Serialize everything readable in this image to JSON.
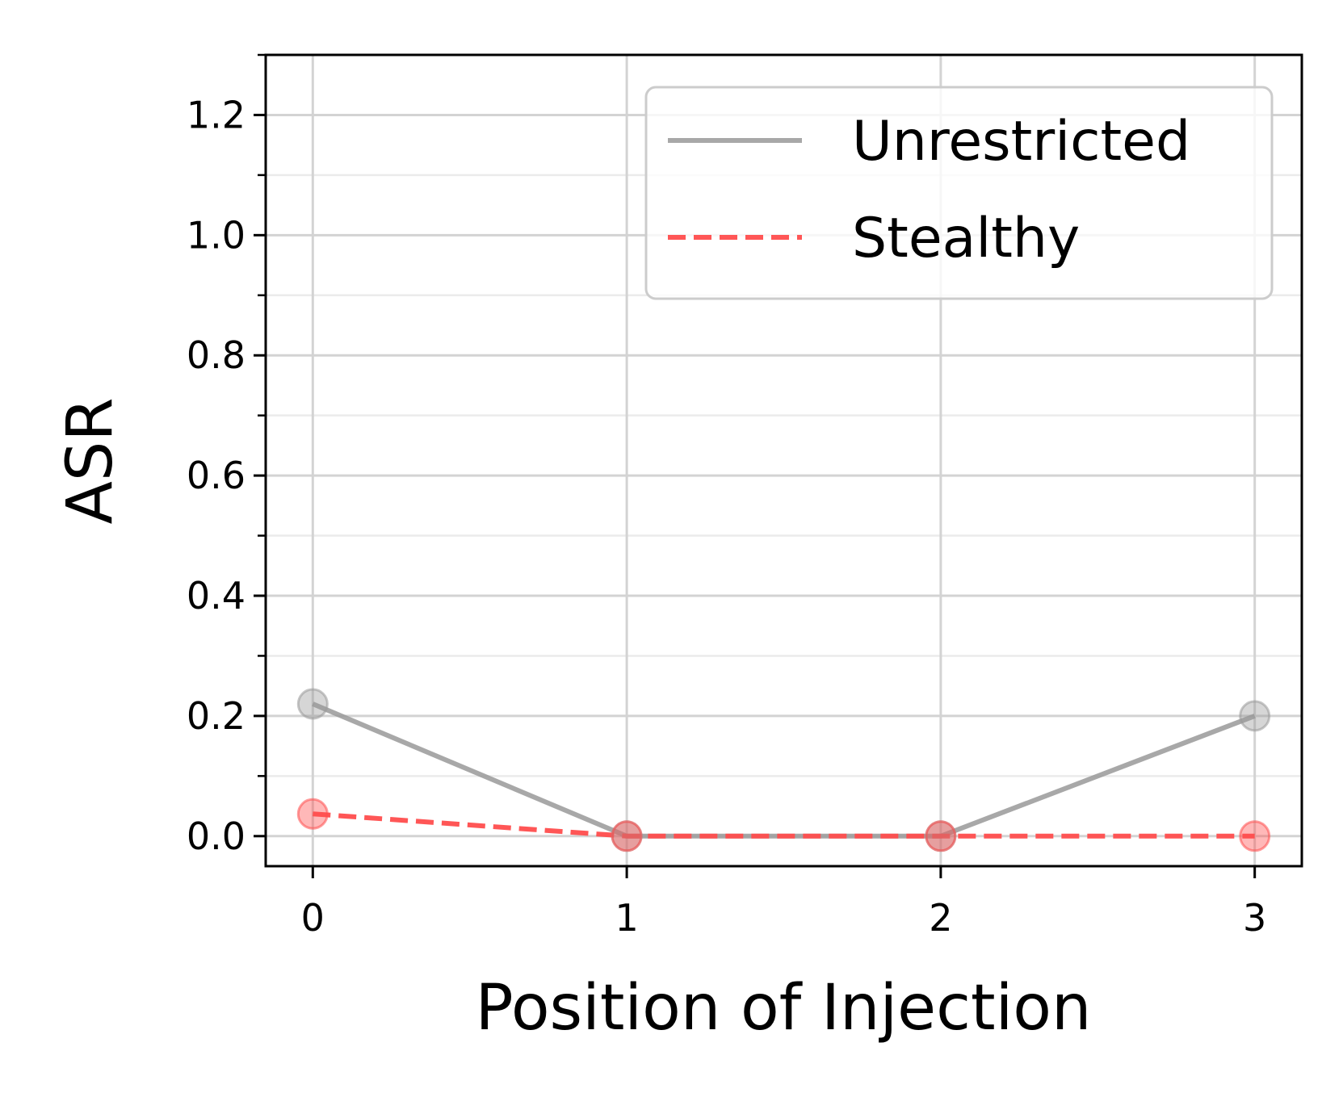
{
  "chart_data": {
    "type": "line",
    "xlabel": "Position of Injection",
    "ylabel": "ASR",
    "x": [
      0,
      1,
      2,
      3
    ],
    "xticks": [
      "0",
      "1",
      "2",
      "3"
    ],
    "yticks": [
      "0.0",
      "0.2",
      "0.4",
      "0.6",
      "0.8",
      "1.0",
      "1.2"
    ],
    "xlim": [
      -0.15,
      3.15
    ],
    "ylim": [
      -0.05,
      1.3
    ],
    "grid": true,
    "legend_position": "top-right",
    "series": [
      {
        "name": "Unrestricted",
        "values": [
          0.22,
          0.0,
          0.0,
          0.2
        ],
        "color": "#999999",
        "style": "solid"
      },
      {
        "name": "Stealthy",
        "values": [
          0.037,
          0.0,
          0.0,
          0.0
        ],
        "color": "#ff4d4d",
        "style": "dashed"
      }
    ]
  }
}
